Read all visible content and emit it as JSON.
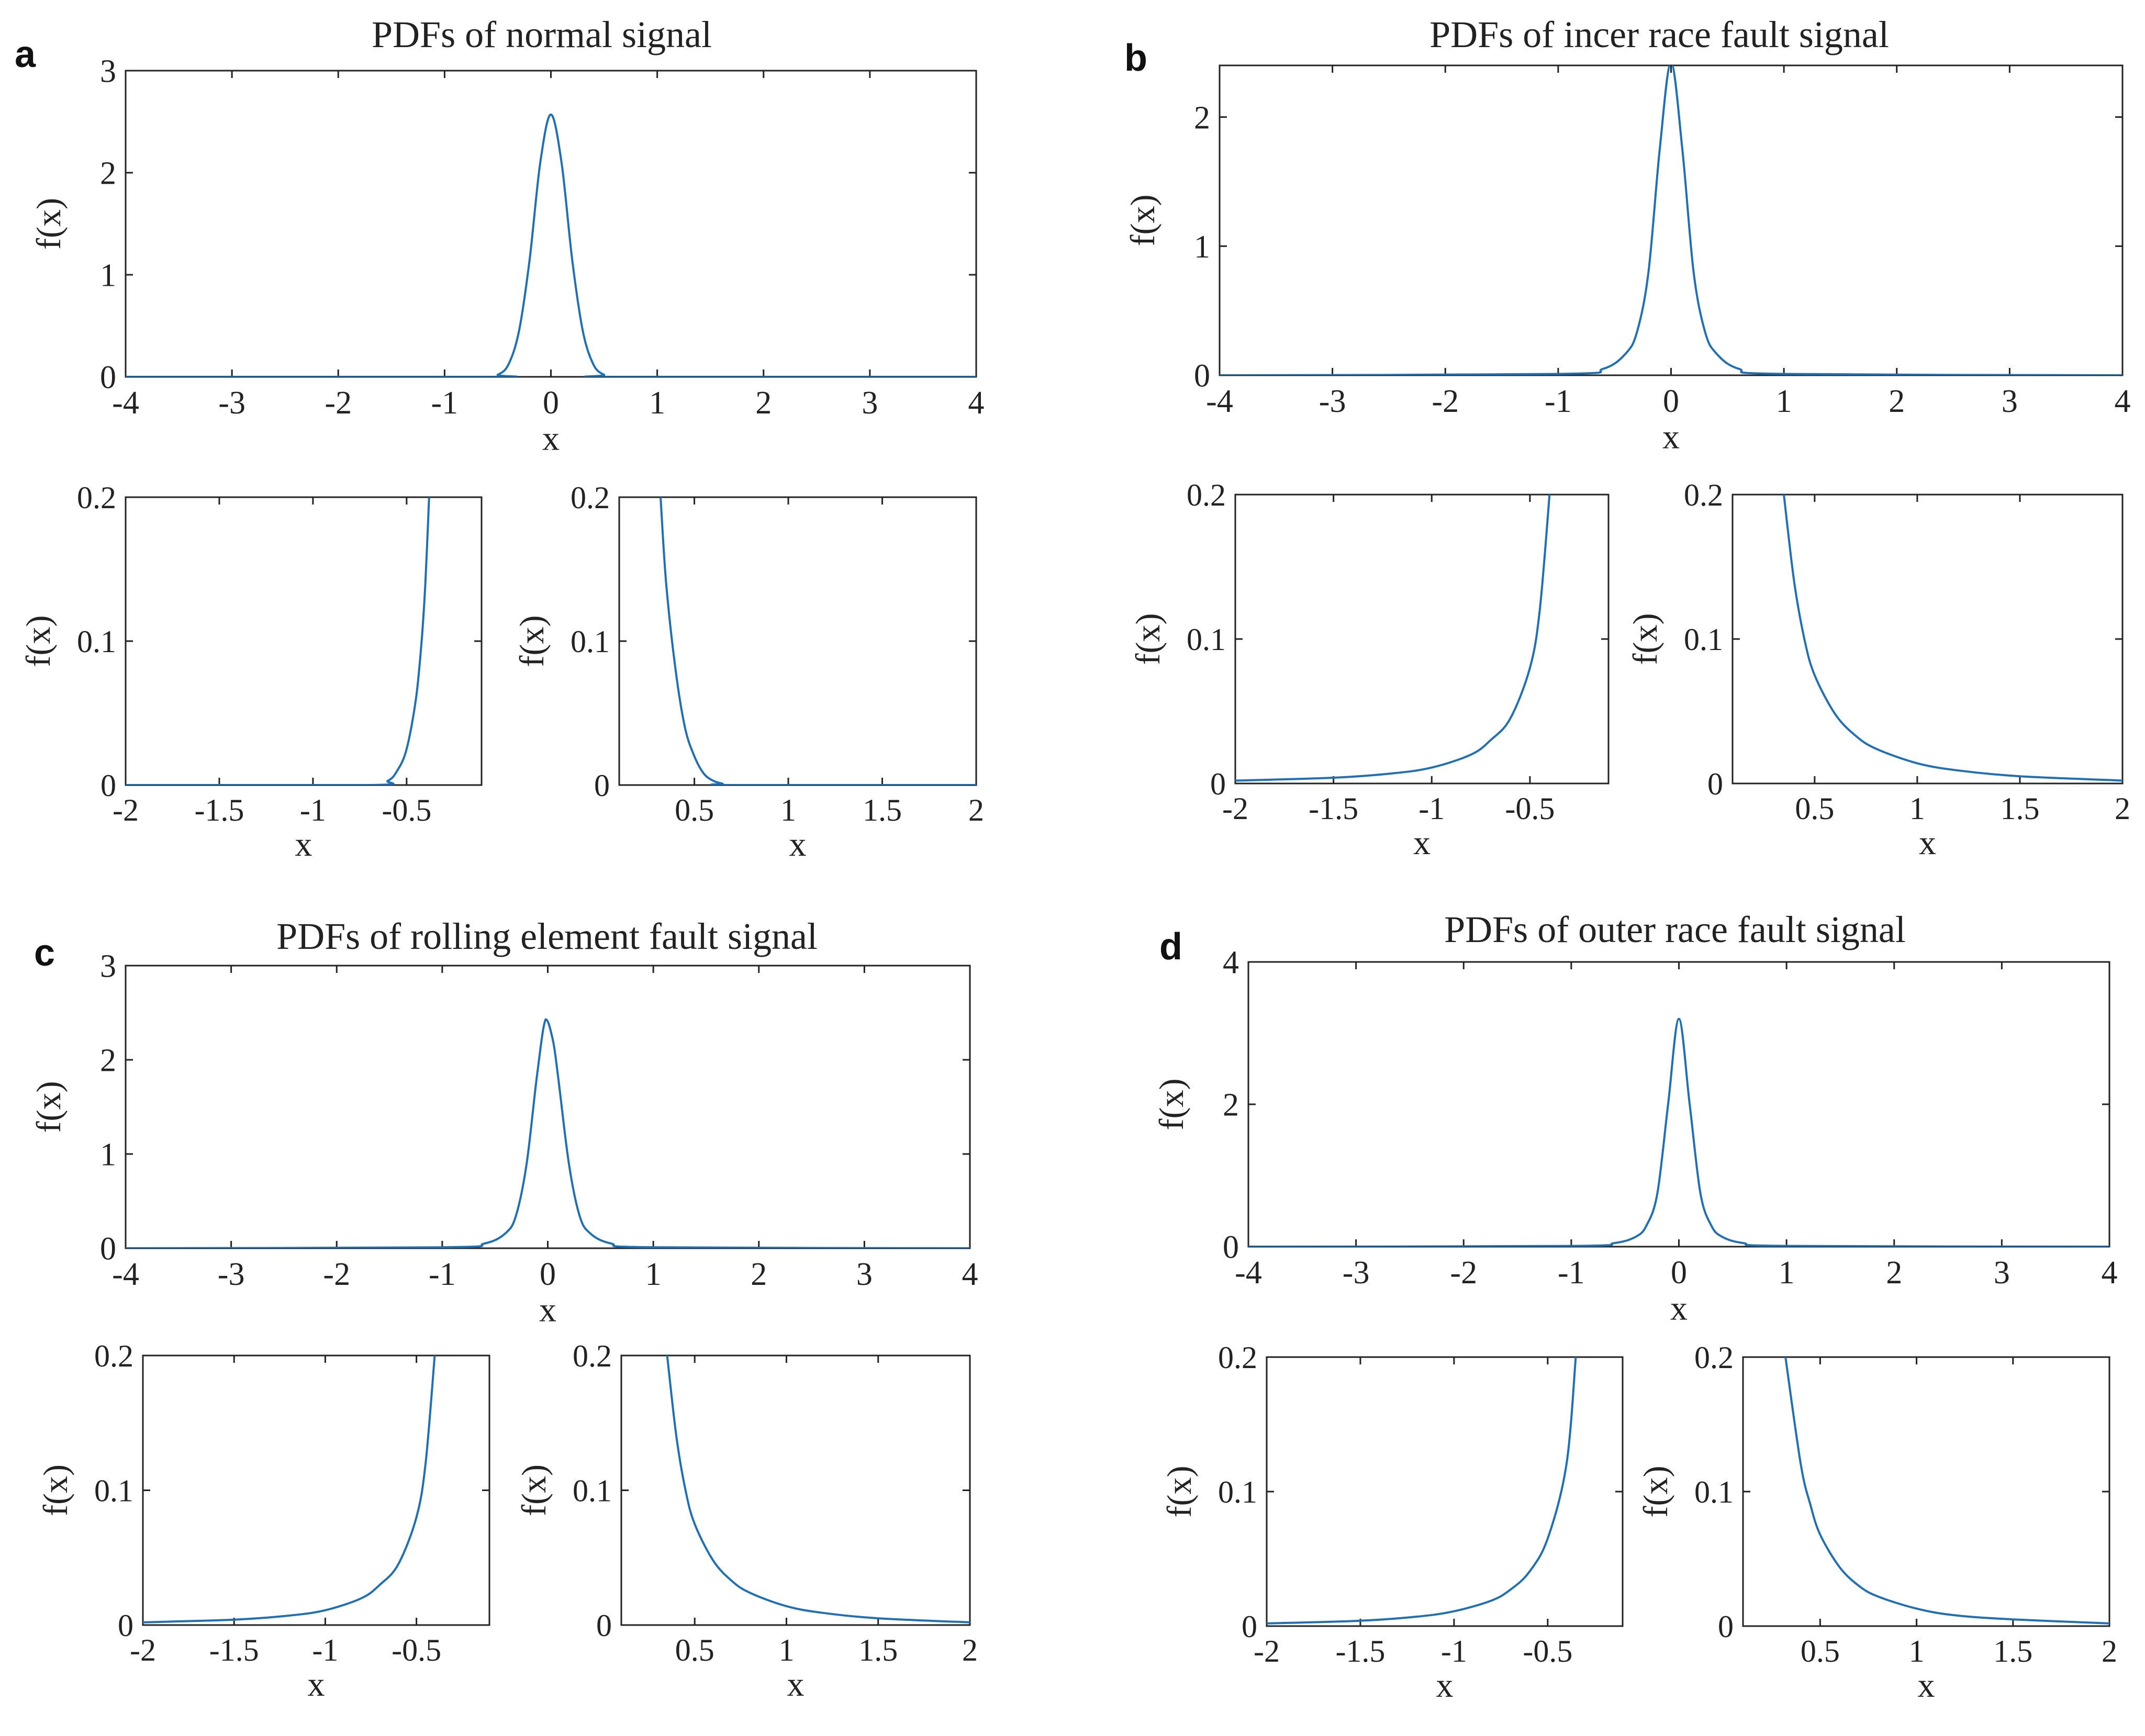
{
  "colors": {
    "line": "#1f6fb5",
    "axes": "#222222",
    "background": "#ffffff"
  },
  "panels": [
    {
      "letter": "a",
      "title": "PDFs of normal signal"
    },
    {
      "letter": "b",
      "title": "PDFs of incer race fault signal"
    },
    {
      "letter": "c",
      "title": "PDFs of rolling element fault signal"
    },
    {
      "letter": "d",
      "title": "PDFs of outer race fault signal"
    }
  ],
  "chart_data": [
    {
      "panel": "a",
      "role": "main",
      "type": "line",
      "title": "PDFs of normal signal",
      "xlabel": "x",
      "ylabel": "f(x)",
      "xlim": [
        -4,
        4
      ],
      "ylim": [
        0,
        3
      ],
      "xticks": [
        -4,
        -3,
        -2,
        -1,
        0,
        1,
        2,
        3,
        4
      ],
      "xticklabels": [
        "-4",
        "-3",
        "-2",
        "-1",
        "0",
        "1",
        "2",
        "3",
        "4"
      ],
      "yticks": [
        0,
        1,
        2,
        3
      ],
      "yticklabels": [
        "0",
        "1",
        "2",
        "3"
      ],
      "x": [
        -4,
        -0.6,
        -0.5,
        -0.4,
        -0.3,
        -0.2,
        -0.1,
        0,
        0.1,
        0.2,
        0.3,
        0.4,
        0.5,
        0.6,
        4
      ],
      "y": [
        0,
        0.0,
        0.02,
        0.12,
        0.45,
        1.15,
        2.1,
        2.57,
        2.1,
        1.15,
        0.45,
        0.12,
        0.02,
        0.0,
        0
      ]
    },
    {
      "panel": "a",
      "role": "zoom-left",
      "type": "line",
      "xlabel": "x",
      "ylabel": "f(x)",
      "xlim": [
        -2,
        -0.1
      ],
      "ylim": [
        0,
        0.2
      ],
      "xticks": [
        -2,
        -1.5,
        -1,
        -0.5
      ],
      "xticklabels": [
        "-2",
        "-1.5",
        "-1",
        "-0.5"
      ],
      "yticks": [
        0,
        0.1,
        0.2
      ],
      "yticklabels": [
        "0",
        "0.1",
        "0.2"
      ],
      "x": [
        -2,
        -0.7,
        -0.6,
        -0.55,
        -0.5,
        -0.45,
        -0.42,
        -0.4,
        -0.38
      ],
      "y": [
        0,
        0.0,
        0.003,
        0.01,
        0.025,
        0.06,
        0.1,
        0.14,
        0.2
      ]
    },
    {
      "panel": "a",
      "role": "zoom-right",
      "type": "line",
      "xlabel": "x",
      "ylabel": "f(x)",
      "xlim": [
        0.1,
        2
      ],
      "ylim": [
        0,
        0.2
      ],
      "xticks": [
        0.5,
        1,
        1.5,
        2
      ],
      "xticklabels": [
        "0.5",
        "1",
        "1.5",
        "2"
      ],
      "yticks": [
        0,
        0.1,
        0.2
      ],
      "yticklabels": [
        "0",
        "0.1",
        "0.2"
      ],
      "x": [
        0.32,
        0.35,
        0.4,
        0.45,
        0.5,
        0.55,
        0.6,
        0.65,
        0.7,
        2
      ],
      "y": [
        0.2,
        0.14,
        0.08,
        0.04,
        0.02,
        0.008,
        0.003,
        0.001,
        0.0,
        0
      ]
    },
    {
      "panel": "b",
      "role": "main",
      "type": "line",
      "title": "PDFs of incer race fault signal",
      "xlabel": "x",
      "ylabel": "f(x)",
      "xlim": [
        -4,
        4
      ],
      "ylim": [
        0,
        2.4
      ],
      "xticks": [
        -4,
        -3,
        -2,
        -1,
        0,
        1,
        2,
        3,
        4
      ],
      "xticklabels": [
        "-4",
        "-3",
        "-2",
        "-1",
        "0",
        "1",
        "2",
        "3",
        "4"
      ],
      "yticks": [
        0,
        1,
        2
      ],
      "yticklabels": [
        "0",
        "1",
        "2"
      ],
      "x": [
        -4,
        -1,
        -0.6,
        -0.4,
        -0.3,
        -0.2,
        -0.1,
        0,
        0.1,
        0.2,
        0.3,
        0.4,
        0.6,
        1,
        4
      ],
      "y": [
        0,
        0.01,
        0.05,
        0.17,
        0.34,
        0.8,
        1.75,
        2.42,
        1.75,
        0.8,
        0.34,
        0.17,
        0.05,
        0.01,
        0
      ]
    },
    {
      "panel": "b",
      "role": "zoom-left",
      "type": "line",
      "xlabel": "x",
      "ylabel": "f(x)",
      "xlim": [
        -2,
        -0.1
      ],
      "ylim": [
        0,
        0.2
      ],
      "xticks": [
        -2,
        -1.5,
        -1,
        -0.5
      ],
      "xticklabels": [
        "-2",
        "-1.5",
        "-1",
        "-0.5"
      ],
      "yticks": [
        0,
        0.1,
        0.2
      ],
      "yticklabels": [
        "0",
        "0.1",
        "0.2"
      ],
      "x": [
        -2,
        -1.5,
        -1.2,
        -1,
        -0.8,
        -0.7,
        -0.6,
        -0.5,
        -0.45,
        -0.4
      ],
      "y": [
        0.002,
        0.004,
        0.007,
        0.011,
        0.02,
        0.03,
        0.045,
        0.08,
        0.12,
        0.2
      ]
    },
    {
      "panel": "b",
      "role": "zoom-right",
      "type": "line",
      "xlabel": "x",
      "ylabel": "f(x)",
      "xlim": [
        0.1,
        2
      ],
      "ylim": [
        0,
        0.2
      ],
      "xticks": [
        0.5,
        1,
        1.5,
        2
      ],
      "xticklabels": [
        "0.5",
        "1",
        "1.5",
        "2"
      ],
      "yticks": [
        0,
        0.1,
        0.2
      ],
      "yticklabels": [
        "0",
        "0.1",
        "0.2"
      ],
      "x": [
        0.35,
        0.4,
        0.45,
        0.5,
        0.6,
        0.7,
        0.8,
        1,
        1.2,
        1.5,
        2
      ],
      "y": [
        0.2,
        0.14,
        0.1,
        0.075,
        0.048,
        0.033,
        0.024,
        0.014,
        0.009,
        0.005,
        0.002
      ]
    },
    {
      "panel": "c",
      "role": "main",
      "type": "line",
      "title": "PDFs of rolling element fault signal",
      "xlabel": "x",
      "ylabel": "f(x)",
      "xlim": [
        -4,
        4
      ],
      "ylim": [
        0,
        3
      ],
      "xticks": [
        -4,
        -3,
        -2,
        -1,
        0,
        1,
        2,
        3,
        4
      ],
      "xticklabels": [
        "-4",
        "-3",
        "-2",
        "-1",
        "0",
        "1",
        "2",
        "3",
        "4"
      ],
      "yticks": [
        0,
        1,
        2,
        3
      ],
      "yticklabels": [
        "0",
        "1",
        "2",
        "3"
      ],
      "x": [
        -4,
        -1,
        -0.6,
        -0.4,
        -0.3,
        -0.2,
        -0.1,
        -0.02,
        0.05,
        0.1,
        0.2,
        0.3,
        0.4,
        0.6,
        1,
        4
      ],
      "y": [
        0,
        0.01,
        0.05,
        0.16,
        0.35,
        0.9,
        1.85,
        2.43,
        2.2,
        1.8,
        0.9,
        0.35,
        0.16,
        0.05,
        0.01,
        0
      ]
    },
    {
      "panel": "c",
      "role": "zoom-left",
      "type": "line",
      "xlabel": "x",
      "ylabel": "f(x)",
      "xlim": [
        -2,
        -0.1
      ],
      "ylim": [
        0,
        0.2
      ],
      "xticks": [
        -2,
        -1.5,
        -1,
        -0.5
      ],
      "xticklabels": [
        "-2",
        "-1.5",
        "-1",
        "-0.5"
      ],
      "yticks": [
        0,
        0.1,
        0.2
      ],
      "yticklabels": [
        "0",
        "0.1",
        "0.2"
      ],
      "x": [
        -2,
        -1.5,
        -1.2,
        -1,
        -0.8,
        -0.7,
        -0.6,
        -0.5,
        -0.45,
        -0.4
      ],
      "y": [
        0.002,
        0.004,
        0.007,
        0.011,
        0.02,
        0.03,
        0.045,
        0.08,
        0.12,
        0.2
      ]
    },
    {
      "panel": "c",
      "role": "zoom-right",
      "type": "line",
      "xlabel": "x",
      "ylabel": "f(x)",
      "xlim": [
        0.1,
        2
      ],
      "ylim": [
        0,
        0.2
      ],
      "xticks": [
        0.5,
        1,
        1.5,
        2
      ],
      "xticklabels": [
        "0.5",
        "1",
        "1.5",
        "2"
      ],
      "yticks": [
        0,
        0.1,
        0.2
      ],
      "yticklabels": [
        "0",
        "0.1",
        "0.2"
      ],
      "x": [
        0.35,
        0.4,
        0.45,
        0.5,
        0.6,
        0.7,
        0.8,
        1,
        1.2,
        1.5,
        2
      ],
      "y": [
        0.2,
        0.14,
        0.1,
        0.075,
        0.048,
        0.033,
        0.024,
        0.014,
        0.009,
        0.005,
        0.002
      ]
    },
    {
      "panel": "d",
      "role": "main",
      "type": "line",
      "title": "PDFs of outer race fault signal",
      "xlabel": "x",
      "ylabel": "f(x)",
      "xlim": [
        -4,
        4
      ],
      "ylim": [
        0,
        4
      ],
      "xticks": [
        -4,
        -3,
        -2,
        -1,
        0,
        1,
        2,
        3,
        4
      ],
      "xticklabels": [
        "-4",
        "-3",
        "-2",
        "-1",
        "0",
        "1",
        "2",
        "3",
        "4"
      ],
      "yticks": [
        0,
        2,
        4
      ],
      "yticklabels": [
        "0",
        "2",
        "4"
      ],
      "x": [
        -4,
        -1,
        -0.6,
        -0.4,
        -0.3,
        -0.2,
        -0.1,
        0,
        0.1,
        0.2,
        0.3,
        0.4,
        0.6,
        1,
        4
      ],
      "y": [
        0,
        0.01,
        0.05,
        0.14,
        0.3,
        0.75,
        2.0,
        3.2,
        2.0,
        0.75,
        0.3,
        0.14,
        0.05,
        0.01,
        0
      ]
    },
    {
      "panel": "d",
      "role": "zoom-left",
      "type": "line",
      "xlabel": "x",
      "ylabel": "f(x)",
      "xlim": [
        -2,
        -0.1
      ],
      "ylim": [
        0,
        0.2
      ],
      "xticks": [
        -2,
        -1.5,
        -1,
        -0.5
      ],
      "xticklabels": [
        "-2",
        "-1.5",
        "-1",
        "-0.5"
      ],
      "yticks": [
        0,
        0.1,
        0.2
      ],
      "yticklabels": [
        "0",
        "0.1",
        "0.2"
      ],
      "x": [
        -2,
        -1.5,
        -1.2,
        -1,
        -0.8,
        -0.7,
        -0.6,
        -0.5,
        -0.4,
        -0.35
      ],
      "y": [
        0.002,
        0.004,
        0.007,
        0.011,
        0.019,
        0.027,
        0.04,
        0.065,
        0.12,
        0.2
      ]
    },
    {
      "panel": "d",
      "role": "zoom-right",
      "type": "line",
      "xlabel": "x",
      "ylabel": "f(x)",
      "xlim": [
        0.1,
        2
      ],
      "ylim": [
        0,
        0.2
      ],
      "xticks": [
        0.5,
        1,
        1.5,
        2
      ],
      "xticklabels": [
        "0.5",
        "1",
        "1.5",
        "2"
      ],
      "yticks": [
        0,
        0.1,
        0.2
      ],
      "yticklabels": [
        "0",
        "0.1",
        "0.2"
      ],
      "x": [
        0.32,
        0.4,
        0.45,
        0.5,
        0.6,
        0.7,
        0.8,
        1,
        1.2,
        1.5,
        2
      ],
      "y": [
        0.2,
        0.12,
        0.09,
        0.068,
        0.044,
        0.03,
        0.022,
        0.013,
        0.008,
        0.005,
        0.002
      ]
    }
  ]
}
